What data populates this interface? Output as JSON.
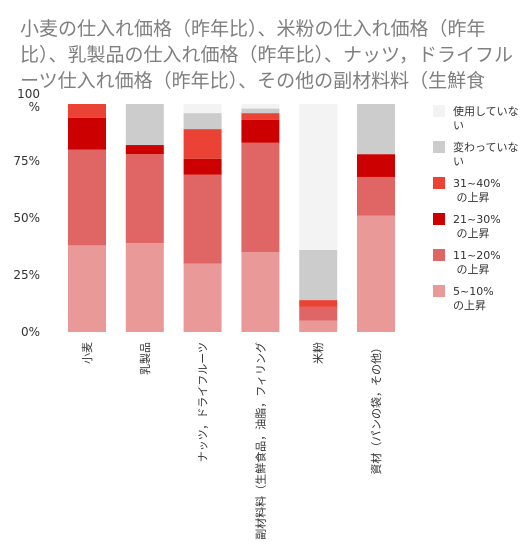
{
  "chart_data": {
    "type": "bar",
    "stacked": true,
    "title": "小麦の仕入れ価格（昨年比）、米粉の仕入れ価格（昨年比）、乳製品の仕入れ価格（昨年比）、ナッツ，ドライフルーツ仕入れ価格（昨年比）、その他の副材料料（生鮮食品，油",
    "categories": [
      "小麦",
      "乳製品",
      "ナッツ，ドライフルーツ",
      "副材料料（生鮮食品，油脂，フィリング",
      "米粉",
      "資材（パンの袋，その他）"
    ],
    "ylim": [
      0,
      100
    ],
    "yticks": [
      "0%",
      "25%",
      "50%",
      "75%",
      "100\n%"
    ],
    "grid": false,
    "legend_position": "right",
    "series": [
      {
        "name": "5~10% の上昇",
        "color": "#ea9999",
        "values": [
          38,
          39,
          30,
          35,
          5,
          51
        ]
      },
      {
        "name": "11~20% の上昇",
        "color": "#e06666",
        "values": [
          42,
          39,
          39,
          48,
          6,
          17
        ]
      },
      {
        "name": "21~30% の上昇",
        "color": "#cc0000",
        "values": [
          14,
          4,
          7,
          10,
          0,
          10
        ]
      },
      {
        "name": "31~40% の上昇",
        "color": "#ea4335",
        "values": [
          6,
          0,
          13,
          3,
          3,
          0
        ]
      },
      {
        "name": "変わっていない",
        "color": "#cccccc",
        "values": [
          0,
          18,
          7,
          2,
          22,
          22
        ]
      },
      {
        "name": "使用していない",
        "color": "#f3f3f3",
        "values": [
          0,
          0,
          4,
          2,
          64,
          0
        ]
      }
    ]
  }
}
